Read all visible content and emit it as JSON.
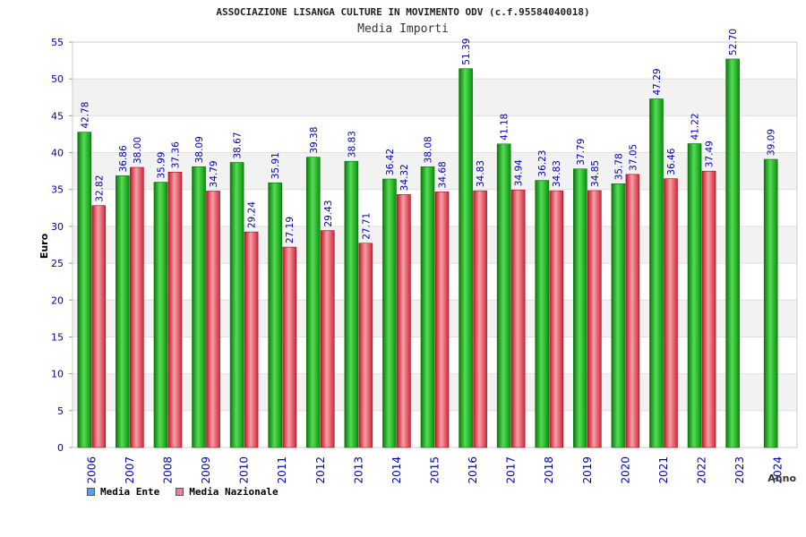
{
  "chart_data": {
    "type": "bar",
    "title": "ASSOCIAZIONE LISANGA CULTURE IN MOVIMENTO ODV (c.f.95584040018)",
    "subtitle": "Media Importi",
    "xlabel": "Anno",
    "ylabel": "Euro",
    "ylim": [
      0,
      55
    ],
    "yticks": [
      0,
      5,
      10,
      15,
      20,
      25,
      30,
      35,
      40,
      45,
      50,
      55
    ],
    "categories": [
      "2006",
      "2007",
      "2008",
      "2009",
      "2010",
      "2011",
      "2012",
      "2013",
      "2014",
      "2015",
      "2016",
      "2017",
      "2018",
      "2019",
      "2020",
      "2021",
      "2022",
      "2023",
      "2024"
    ],
    "series": [
      {
        "name": "Media Ente",
        "color": "#22bb22",
        "legend_color": "#5aa0e6",
        "values": [
          42.78,
          36.86,
          35.99,
          38.09,
          38.67,
          35.91,
          39.38,
          38.83,
          36.42,
          38.08,
          51.39,
          41.18,
          36.23,
          37.79,
          35.78,
          47.29,
          41.22,
          52.7,
          39.09
        ],
        "labels": [
          "42.78",
          "36.86",
          "35.99",
          "38.09",
          "38.67",
          "35.91",
          "39.38",
          "38.83",
          "36.42",
          "38.08",
          "51.39",
          "41.18",
          "36.23",
          "37.79",
          "35.78",
          "47.29",
          "41.22",
          "52.70",
          "39.09"
        ]
      },
      {
        "name": "Media Nazionale",
        "color": "#e8505a",
        "legend_color": "#e87ea8",
        "values": [
          32.82,
          38.0,
          37.36,
          34.79,
          29.24,
          27.19,
          29.43,
          27.71,
          34.32,
          34.68,
          34.83,
          34.94,
          34.83,
          34.85,
          37.05,
          36.46,
          37.49,
          null,
          null
        ],
        "labels": [
          "32.82",
          "38.00",
          "37.36",
          "34.79",
          "29.24",
          "27.19",
          "29.43",
          "27.71",
          "34.32",
          "34.68",
          "34.83",
          "34.94",
          "34.83",
          "34.85",
          "37.05",
          "36.46",
          "37.49",
          null,
          null
        ]
      }
    ],
    "grid": true,
    "legend_position": "bottom-left"
  }
}
